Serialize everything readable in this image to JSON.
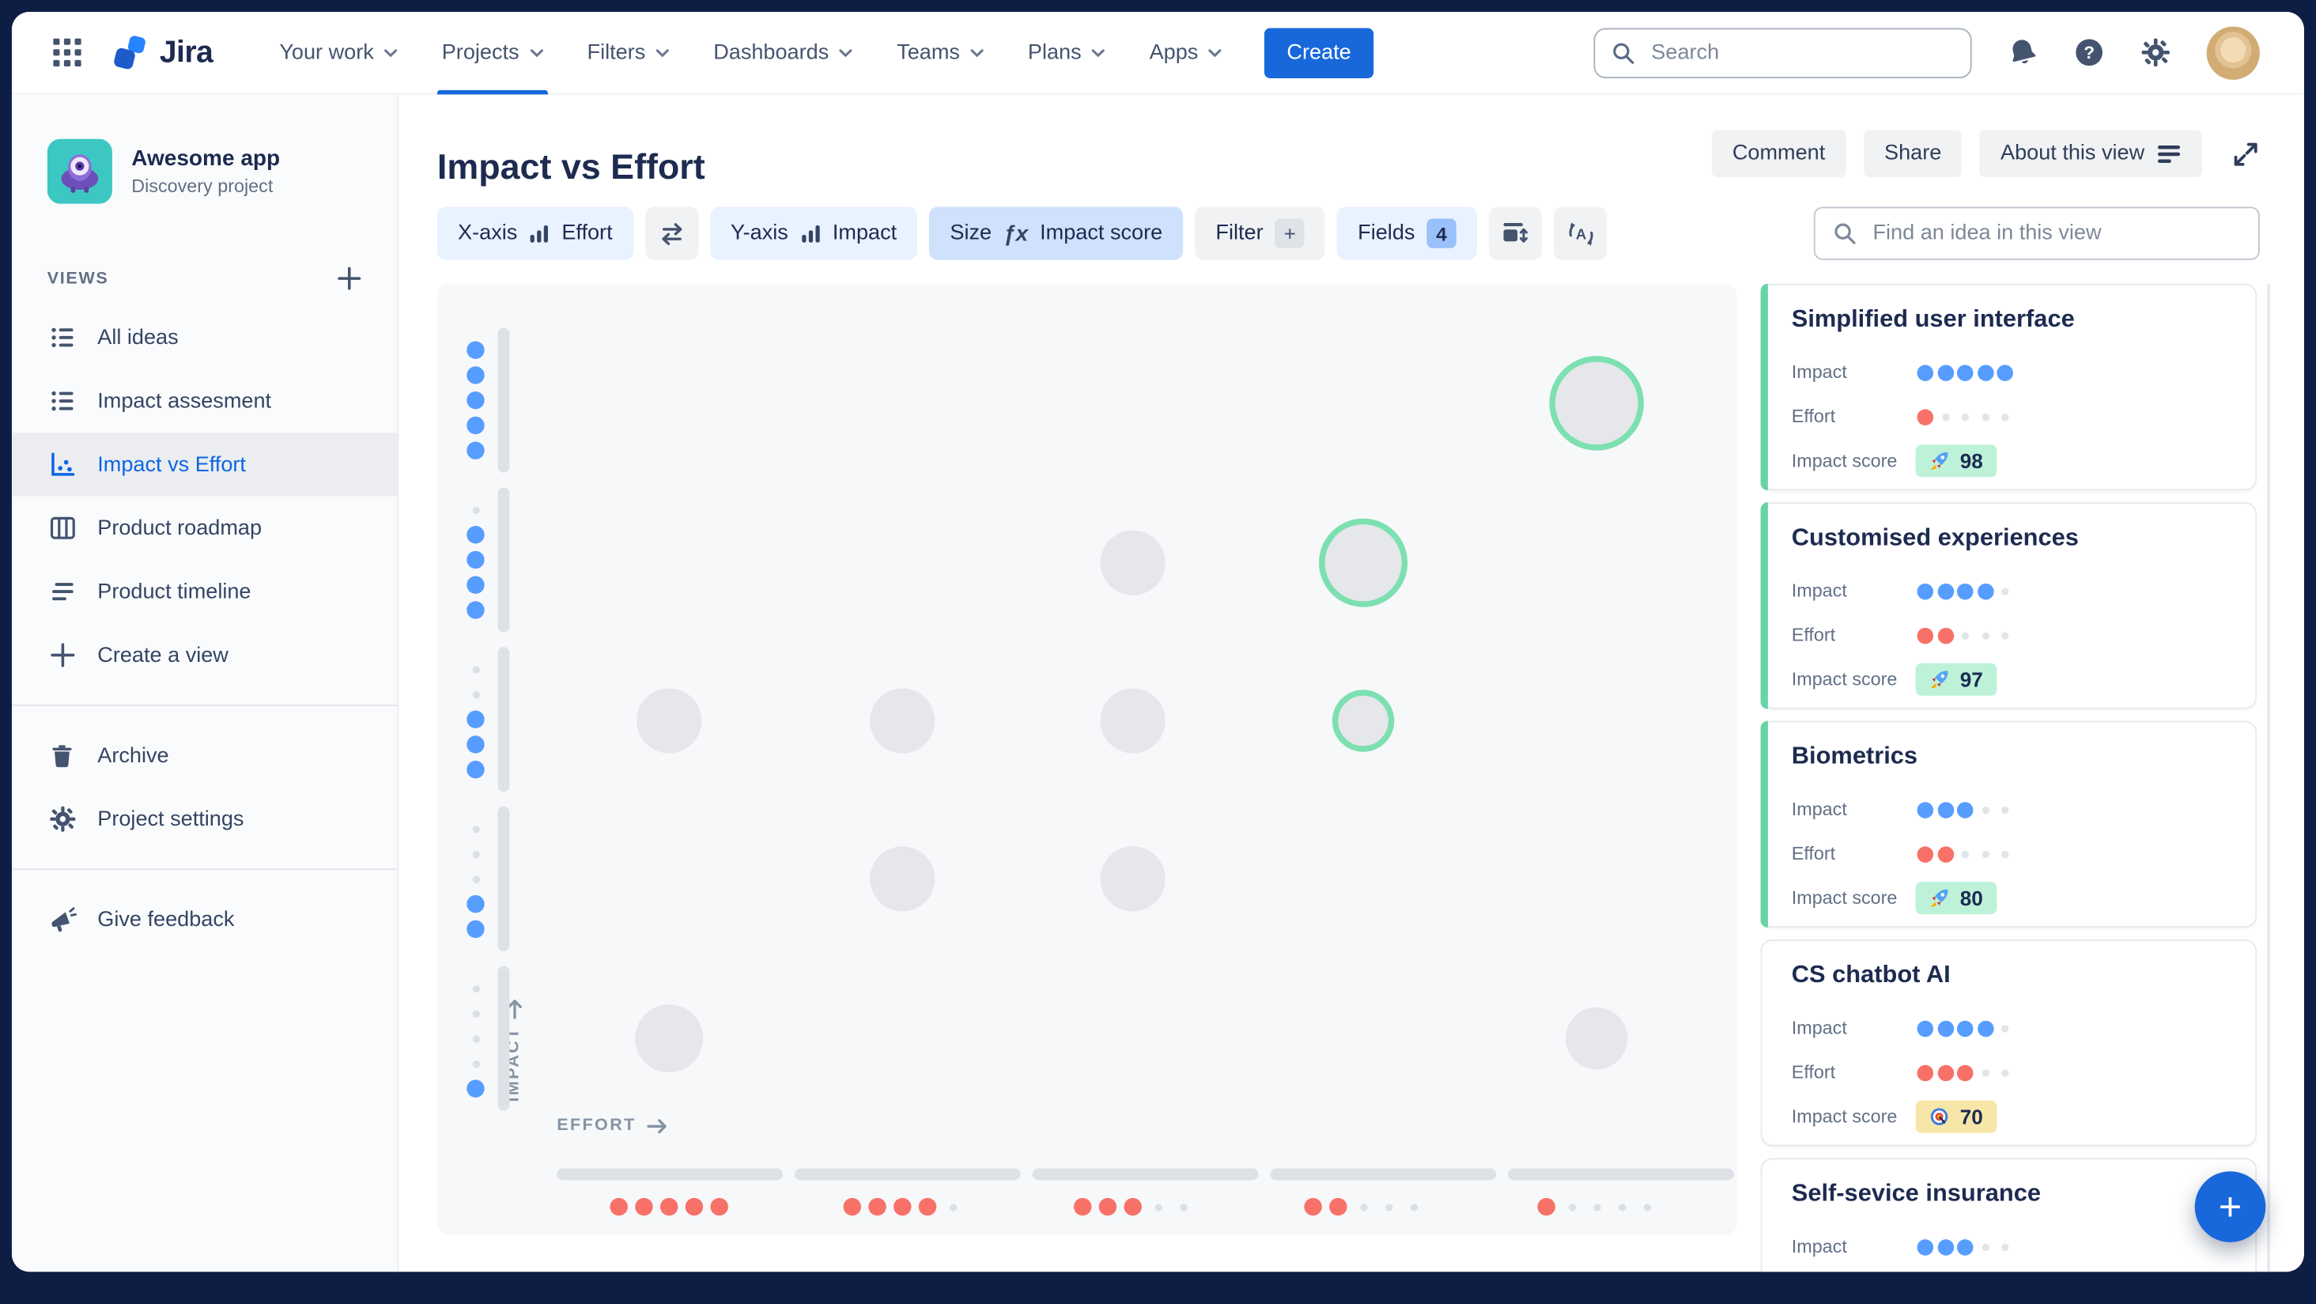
{
  "colors": {
    "frame": "#0D1D43",
    "accent_blue": "#1868DB",
    "active_link": "#0C66E4",
    "impact_dot": "#579DFF",
    "effort_dot": "#F87168",
    "bubble_fill": "#E5E7EA",
    "bubble_ring": "#7CE0B0",
    "card_accent": "#69D3A6",
    "badge_green": "#BDF2D9",
    "badge_yellow": "#F6E6A8"
  },
  "nav": {
    "logo_text": "Jira",
    "items": [
      {
        "label": "Your work"
      },
      {
        "label": "Projects",
        "active": true
      },
      {
        "label": "Filters"
      },
      {
        "label": "Dashboards"
      },
      {
        "label": "Teams"
      },
      {
        "label": "Plans"
      },
      {
        "label": "Apps"
      }
    ],
    "create_label": "Create",
    "search_placeholder": "Search"
  },
  "sidebar": {
    "project_name": "Awesome app",
    "project_type": "Discovery project",
    "views_label": "VIEWS",
    "views": [
      {
        "label": "All ideas",
        "icon": "list"
      },
      {
        "label": "Impact assesment",
        "icon": "list"
      },
      {
        "label": "Impact vs Effort",
        "icon": "scatter",
        "active": true
      },
      {
        "label": "Product roadmap",
        "icon": "board"
      },
      {
        "label": "Product timeline",
        "icon": "timeline"
      },
      {
        "label": "Create a view",
        "icon": "plus"
      }
    ],
    "tools": [
      {
        "label": "Archive",
        "icon": "trash"
      },
      {
        "label": "Project settings",
        "icon": "gear"
      }
    ],
    "footer": [
      {
        "label": "Give feedback",
        "icon": "megaphone"
      }
    ]
  },
  "view_header": {
    "title": "Impact vs Effort",
    "comment_label": "Comment",
    "share_label": "Share",
    "about_label": "About this view"
  },
  "toolbar": {
    "x_axis": {
      "label": "X-axis",
      "value": "Effort"
    },
    "y_axis": {
      "label": "Y-axis",
      "value": "Impact"
    },
    "size": {
      "label": "Size",
      "fn": "ƒx",
      "value": "Impact score"
    },
    "filter": {
      "label": "Filter",
      "plus": "+"
    },
    "fields": {
      "label": "Fields",
      "count": "4"
    },
    "find_placeholder": "Find an idea in this view"
  },
  "chart_data": {
    "type": "bubble",
    "x_axis": {
      "label": "EFFORT",
      "ticks": [
        5,
        4,
        3,
        2,
        1
      ],
      "note": "effort rating shown as red dot groups, decreasing left to right"
    },
    "y_axis": {
      "label": "IMPACT",
      "ticks": [
        5,
        4,
        3,
        2,
        1
      ],
      "note": "impact rating shown as blue dot groups, decreasing top to bottom"
    },
    "points": [
      {
        "label": "Simplified user interface",
        "impact": 5,
        "effort": 1,
        "score": 98,
        "highlighted": true,
        "r": 32
      },
      {
        "label": "Customised experiences",
        "impact": 4,
        "effort": 2,
        "score": 97,
        "highlighted": true,
        "r": 30
      },
      {
        "label": "Biometrics",
        "impact": 3,
        "effort": 2,
        "score": 80,
        "highlighted": true,
        "r": 21
      },
      {
        "label": "CS chatbot AI",
        "impact": 4,
        "effort": 3,
        "score": 70,
        "highlighted": false,
        "r": 22
      },
      {
        "label": "",
        "impact": 3,
        "effort": 5,
        "highlighted": false,
        "r": 22
      },
      {
        "label": "",
        "impact": 3,
        "effort": 4,
        "highlighted": false,
        "r": 22
      },
      {
        "label": "",
        "impact": 3,
        "effort": 3,
        "highlighted": false,
        "r": 22
      },
      {
        "label": "",
        "impact": 2,
        "effort": 4,
        "highlighted": false,
        "r": 22
      },
      {
        "label": "",
        "impact": 2,
        "effort": 3,
        "highlighted": false,
        "r": 22
      },
      {
        "label": "",
        "impact": 1,
        "effort": 5,
        "highlighted": false,
        "r": 23
      },
      {
        "label": "",
        "impact": 1,
        "effort": 1,
        "highlighted": false,
        "r": 21
      }
    ]
  },
  "cards": {
    "row_labels": {
      "impact": "Impact",
      "effort": "Effort",
      "score": "Impact score"
    },
    "items": [
      {
        "title": "Simplified user interface",
        "impact": 5,
        "effort": 1,
        "score": "98",
        "badge": "green",
        "badge_icon": "rocket",
        "accent": true
      },
      {
        "title": "Customised experiences",
        "impact": 4,
        "effort": 2,
        "score": "97",
        "badge": "green",
        "badge_icon": "rocket",
        "accent": true
      },
      {
        "title": "Biometrics",
        "impact": 3,
        "effort": 2,
        "score": "80",
        "badge": "green",
        "badge_icon": "rocket",
        "accent": true
      },
      {
        "title": "CS chatbot AI",
        "impact": 4,
        "effort": 3,
        "score": "70",
        "badge": "yellow",
        "badge_icon": "target",
        "accent": false
      },
      {
        "title": "Self-sevice insurance",
        "impact": 3,
        "effort": null,
        "score": null,
        "badge": null,
        "badge_icon": null,
        "accent": false
      }
    ]
  },
  "fab_label": "+"
}
